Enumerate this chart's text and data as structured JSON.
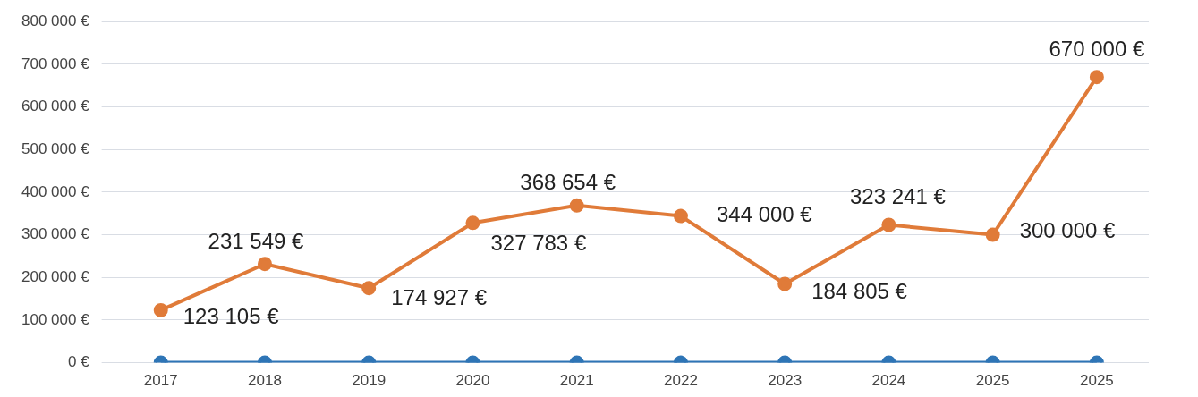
{
  "chart_data": {
    "type": "line",
    "categories": [
      "2017",
      "2018",
      "2019",
      "2020",
      "2021",
      "2022",
      "2023",
      "2024",
      "2025",
      "2025"
    ],
    "series": [
      {
        "color": "#e07b39",
        "values": [
          123105,
          231549,
          174927,
          327783,
          368654,
          344000,
          184805,
          323241,
          300000,
          670000
        ],
        "value_labels": [
          "123 105 €",
          "231 549 €",
          "174 927 €",
          "327 783 €",
          "368 654 €",
          "344 000 €",
          "184 805 €",
          "323 241 €",
          "300 000 €",
          "670 000 €"
        ]
      },
      {
        "color": "#2e75b6",
        "values": [
          0,
          0,
          0,
          0,
          0,
          0,
          0,
          0,
          0,
          0
        ]
      }
    ],
    "ylim": [
      0,
      800000
    ],
    "yticks": [
      {
        "value": 0,
        "label": "0 €"
      },
      {
        "value": 100000,
        "label": "100 000 €"
      },
      {
        "value": 200000,
        "label": "200 000 €"
      },
      {
        "value": 300000,
        "label": "300 000 €"
      },
      {
        "value": 400000,
        "label": "400 000 €"
      },
      {
        "value": 500000,
        "label": "500 000 €"
      },
      {
        "value": 600000,
        "label": "600 000 €"
      },
      {
        "value": 700000,
        "label": "700 000 €"
      },
      {
        "value": 800000,
        "label": "800 000 €"
      }
    ],
    "grid": "y",
    "legend": false,
    "marker": "circle",
    "line_style": "solid"
  }
}
